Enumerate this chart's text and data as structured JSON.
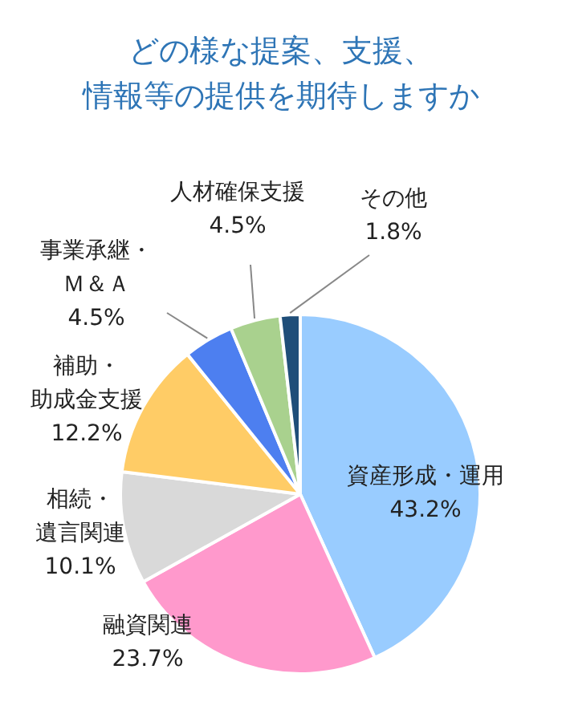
{
  "chart_data": {
    "type": "pie",
    "title": "どの様な提案、支援、情報等の提供を期待しますか",
    "categories": [
      "資産形成・運用",
      "融資関連",
      "相続・遺言関連",
      "補助・助成金支援",
      "事業承継・Ｍ＆Ａ",
      "人材確保支援",
      "その他"
    ],
    "values": [
      43.2,
      23.7,
      10.1,
      12.2,
      4.5,
      4.5,
      1.8
    ],
    "value_labels": [
      "43.2%",
      "23.7%",
      "10.1%",
      "12.2%",
      "4.5%",
      "4.5%",
      "1.8%"
    ],
    "colors": [
      "#99ccff",
      "#ff99cc",
      "#d9d9d9",
      "#ffcc66",
      "#4d7ff0",
      "#a9d18e",
      "#1f4e79"
    ],
    "legend": false
  }
}
